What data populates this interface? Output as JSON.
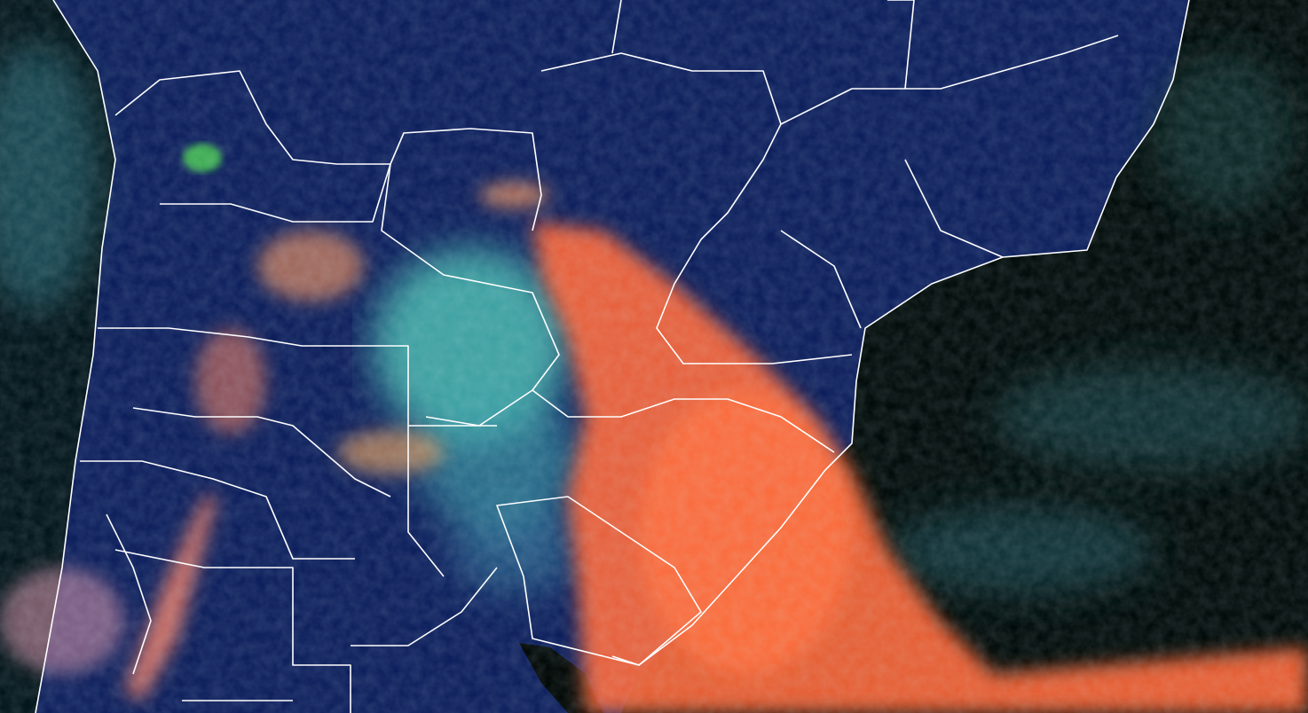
{
  "image": {
    "kind": "false-color satellite composite with political borders",
    "colors": {
      "land": "#0d1f5c",
      "ocean": "#020c0a",
      "high_cloud": "#ff6a3c",
      "low_cloud": "#4cc3b4",
      "mixed_cloud": "#d88a6c",
      "vegetation": "#3fae55",
      "borders": "#ffffff"
    }
  }
}
